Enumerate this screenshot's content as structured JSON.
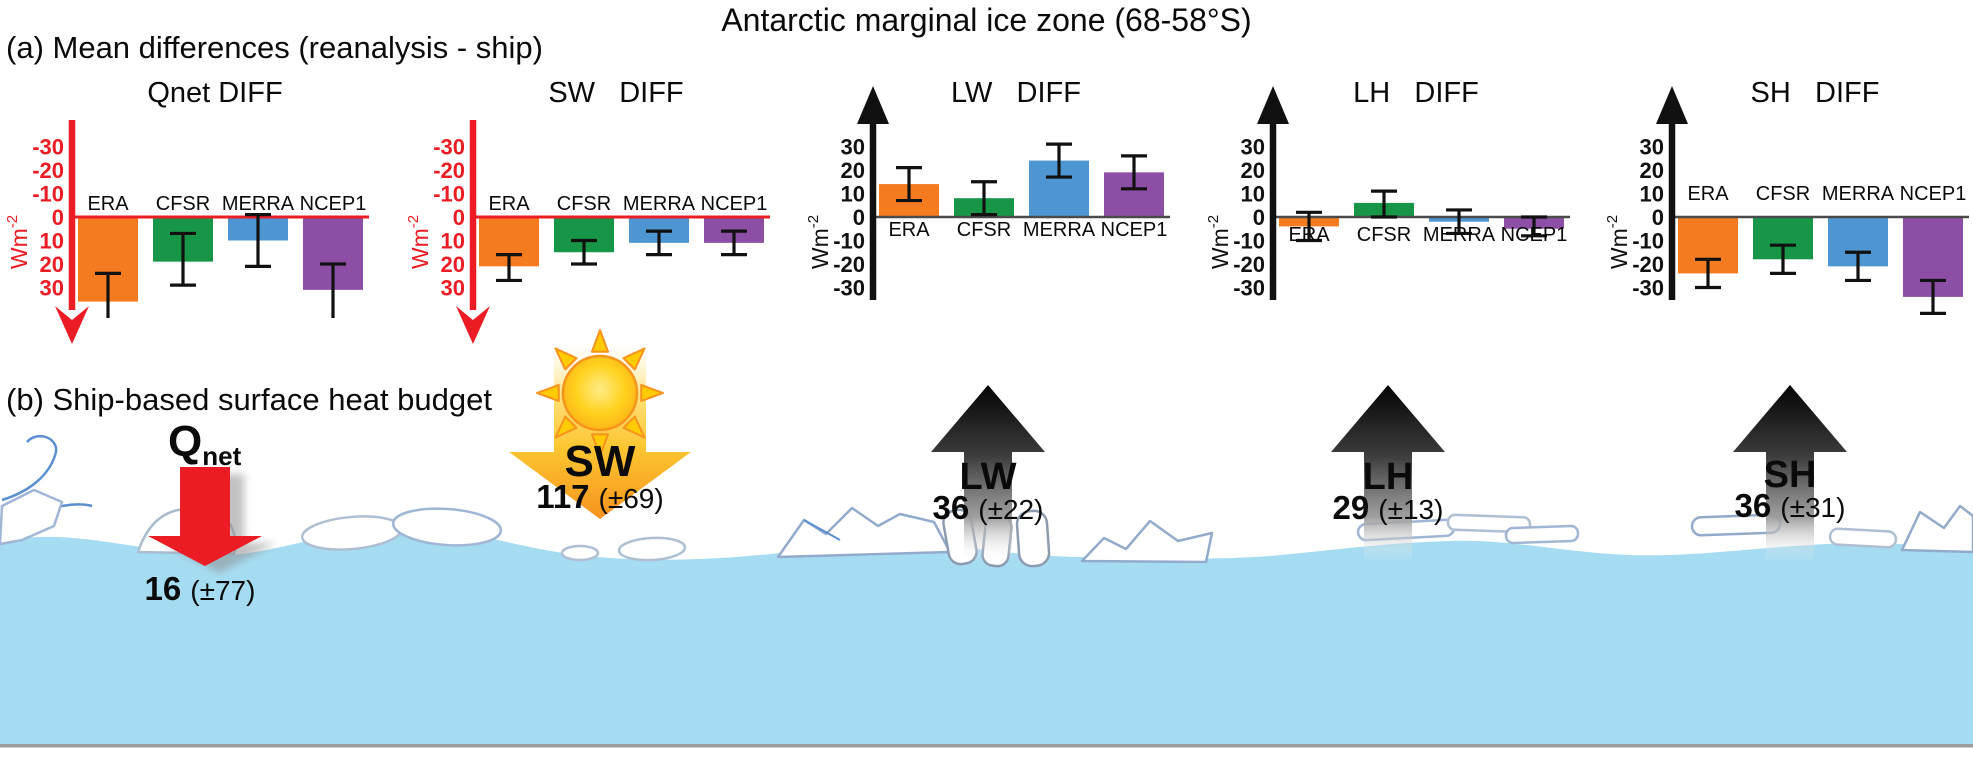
{
  "title": "Antarctic marginal ice zone (68-58°S)",
  "panel_a": {
    "label": "(a) Mean differences (reanalysis - ship)"
  },
  "panel_b": {
    "label": "(b) Ship-based surface heat budget"
  },
  "colors": {
    "era_orange": "#F47B20",
    "cfsr_green": "#189648",
    "merra_blue": "#4D96D2",
    "ncep1_purple": "#8C4FA5",
    "red_axis": "#EC1C24",
    "black_axis": "#111111",
    "water_blue": "#A6DCF2",
    "sun_yellow": "#FFD21E",
    "sun_orange": "#F7941D"
  },
  "chart_data": [
    {
      "type": "bar",
      "title": "Qnet DIFF",
      "ylabel": "Wm-2",
      "axis_style": "red-inverted",
      "ylim": [
        -30,
        30
      ],
      "yticks": [
        -30,
        -20,
        -10,
        0,
        10,
        20,
        30
      ],
      "categories": [
        "ERA",
        "CFSR",
        "MERRA",
        "NCEP1"
      ],
      "values": [
        36,
        19,
        10,
        31
      ],
      "error_low": [
        24,
        7,
        -1,
        20
      ],
      "error_high": [
        48,
        29,
        21,
        44
      ],
      "legend_position": "none",
      "grid": false
    },
    {
      "type": "bar",
      "title": "SW   DIFF",
      "ylabel": "Wm-2",
      "axis_style": "red-inverted",
      "ylim": [
        -30,
        30
      ],
      "yticks": [
        -30,
        -20,
        -10,
        0,
        10,
        20,
        30
      ],
      "categories": [
        "ERA",
        "CFSR",
        "MERRA",
        "NCEP1"
      ],
      "values": [
        21,
        15,
        11,
        11
      ],
      "error_low": [
        16,
        10,
        6,
        6
      ],
      "error_high": [
        27,
        20,
        16,
        16
      ],
      "legend_position": "none",
      "grid": false
    },
    {
      "type": "bar",
      "title": "LW   DIFF",
      "ylabel": "Wm-2",
      "axis_style": "black-normal",
      "ylim": [
        -30,
        30
      ],
      "yticks": [
        -30,
        -20,
        -10,
        0,
        10,
        20,
        30
      ],
      "categories": [
        "ERA",
        "CFSR",
        "MERRA",
        "NCEP1"
      ],
      "values": [
        14,
        8,
        24,
        19
      ],
      "error_low": [
        7,
        1,
        17,
        12
      ],
      "error_high": [
        21,
        15,
        31,
        26
      ],
      "legend_position": "none",
      "grid": false
    },
    {
      "type": "bar",
      "title": "LH   DIFF",
      "ylabel": "Wm-2",
      "axis_style": "black-normal",
      "ylim": [
        -30,
        30
      ],
      "yticks": [
        -30,
        -20,
        -10,
        0,
        10,
        20,
        30
      ],
      "categories": [
        "ERA",
        "CFSR",
        "MERRA",
        "NCEP1"
      ],
      "values": [
        -4,
        6,
        -2,
        -5
      ],
      "error_low": [
        -10,
        0,
        -7,
        -8
      ],
      "error_high": [
        2,
        11,
        3,
        0
      ],
      "legend_position": "none",
      "grid": false
    },
    {
      "type": "bar",
      "title": "SH   DIFF",
      "ylabel": "Wm-2",
      "axis_style": "black-normal",
      "ylim": [
        -30,
        30
      ],
      "yticks": [
        -30,
        -20,
        -10,
        0,
        10,
        20,
        30
      ],
      "categories": [
        "ERA",
        "CFSR",
        "MERRA",
        "NCEP1"
      ],
      "values": [
        -24,
        -18,
        -21,
        -34
      ],
      "error_low": [
        -30,
        -24,
        -27,
        -41
      ],
      "error_high": [
        -18,
        -12,
        -15,
        -27
      ],
      "legend_position": "none",
      "grid": false
    }
  ],
  "budget": {
    "items": [
      {
        "name": "Qnet",
        "label": "Q",
        "label_sub": "net",
        "value": "16",
        "uncertainty": "(±77)",
        "direction": "down",
        "style": "red"
      },
      {
        "name": "SW",
        "label": "SW",
        "value": "117",
        "uncertainty": "(±69)",
        "direction": "down",
        "style": "sun"
      },
      {
        "name": "LW",
        "label": "LW",
        "value": "36",
        "uncertainty": "(±22)",
        "direction": "up",
        "style": "gray"
      },
      {
        "name": "LH",
        "label": "LH",
        "value": "29",
        "uncertainty": "(±13)",
        "direction": "up",
        "style": "gray"
      },
      {
        "name": "SH",
        "label": "SH",
        "value": "36",
        "uncertainty": "(±31)",
        "direction": "up",
        "style": "gray"
      }
    ]
  }
}
